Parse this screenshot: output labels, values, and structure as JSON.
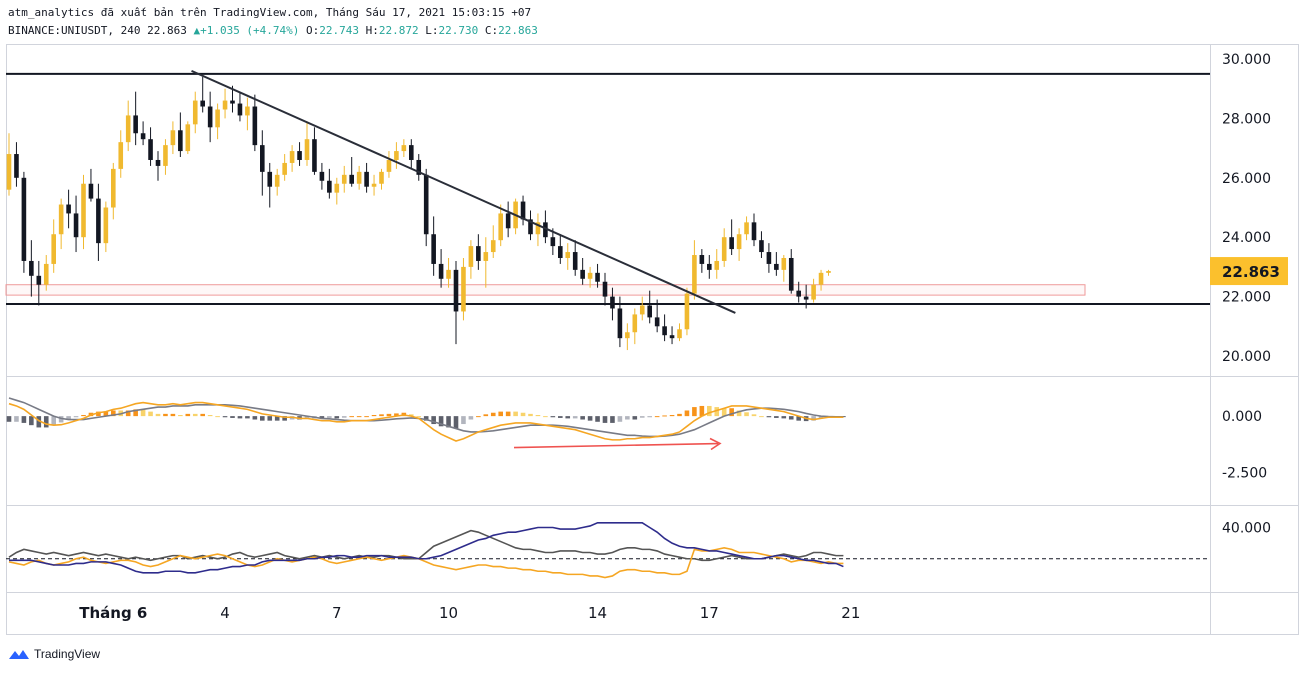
{
  "header": {
    "line1": "atm_analytics đã xuất bản trên TradingView.com, Tháng Sáu 17, 2021 15:03:15 +07",
    "symbol": "BINANCE:UNIUSDT, 240 ",
    "last": "22.863",
    "change_arrow": "▲",
    "change": "+1.035 (+4.74%)",
    "o_label": "O:",
    "o": "22.743",
    "h_label": "H:",
    "h": "22.872",
    "l_label": "L:",
    "l": "22.730",
    "c_label": "C:",
    "c": "22.863"
  },
  "colors": {
    "up": "#f0b92f",
    "down": "#131722",
    "trendline": "#2a2e39",
    "zone_stroke": "#ef9a9a",
    "price_tag": "#fbc02d",
    "macd_fast": "#f5a623",
    "macd_slow": "#787b86",
    "hist_pos": "#f7931a",
    "hist_pos_light": "#f8d36b",
    "hist_neg": "#5d606b",
    "hist_neg_light": "#b2b5be",
    "dmi_plus": "#f5a623",
    "dmi_minus": "#2e2c8c",
    "adx": "#555555",
    "arrow": "#ef5350"
  },
  "footer": {
    "brand": "TradingView"
  },
  "chart_data": {
    "type": "candlestick",
    "price_axis": {
      "ticks": [
        "30.000",
        "28.000",
        "26.000",
        "24.000",
        "22.000",
        "20.000"
      ],
      "range": [
        19.0,
        30.5
      ]
    },
    "time_axis": {
      "labels": [
        "Tháng 6",
        "4",
        "7",
        "10",
        "14",
        "17",
        "21"
      ],
      "label_bars": [
        14,
        29,
        44,
        59,
        79,
        94,
        113
      ]
    },
    "last_price_label": "22.863",
    "horizontal_lines": [
      29.5,
      21.75
    ],
    "support_zone": [
      22.05,
      22.4
    ],
    "trendline": {
      "from": {
        "bar": 24.5,
        "price": 29.6
      },
      "to": {
        "bar": 97.5,
        "price": 21.45
      }
    },
    "candles": [
      [
        25.6,
        27.5,
        25.4,
        26.8
      ],
      [
        26.8,
        27.2,
        25.7,
        26.0
      ],
      [
        26.0,
        26.2,
        22.8,
        23.2
      ],
      [
        23.2,
        23.9,
        22.0,
        22.7
      ],
      [
        22.7,
        23.2,
        21.7,
        22.4
      ],
      [
        22.4,
        23.4,
        22.2,
        23.1
      ],
      [
        23.1,
        24.6,
        22.8,
        24.1
      ],
      [
        24.1,
        25.3,
        23.6,
        25.1
      ],
      [
        25.1,
        25.6,
        24.3,
        24.8
      ],
      [
        24.8,
        25.4,
        23.5,
        24.0
      ],
      [
        24.0,
        26.1,
        23.6,
        25.8
      ],
      [
        25.8,
        26.3,
        25.2,
        25.3
      ],
      [
        25.3,
        25.8,
        23.2,
        23.8
      ],
      [
        23.8,
        25.2,
        23.5,
        25.0
      ],
      [
        25.0,
        26.5,
        24.6,
        26.3
      ],
      [
        26.3,
        27.6,
        26.0,
        27.2
      ],
      [
        27.2,
        28.6,
        26.9,
        28.1
      ],
      [
        28.1,
        28.9,
        27.1,
        27.5
      ],
      [
        27.5,
        27.9,
        27.1,
        27.3
      ],
      [
        27.3,
        27.7,
        26.4,
        26.6
      ],
      [
        26.6,
        26.9,
        25.9,
        26.4
      ],
      [
        26.4,
        27.3,
        26.1,
        27.1
      ],
      [
        27.1,
        27.9,
        26.8,
        27.6
      ],
      [
        27.6,
        28.2,
        26.7,
        26.9
      ],
      [
        26.9,
        27.9,
        26.8,
        27.8
      ],
      [
        27.8,
        28.9,
        27.5,
        28.6
      ],
      [
        28.6,
        29.4,
        28.2,
        28.4
      ],
      [
        28.4,
        28.9,
        27.2,
        27.7
      ],
      [
        27.7,
        28.5,
        27.3,
        28.3
      ],
      [
        28.3,
        29.0,
        28.0,
        28.6
      ],
      [
        28.6,
        29.1,
        28.2,
        28.5
      ],
      [
        28.5,
        28.9,
        27.9,
        28.1
      ],
      [
        28.1,
        28.7,
        27.6,
        28.4
      ],
      [
        28.4,
        28.8,
        26.9,
        27.1
      ],
      [
        27.1,
        27.6,
        25.4,
        26.2
      ],
      [
        26.2,
        26.5,
        25.0,
        25.7
      ],
      [
        25.7,
        26.3,
        25.4,
        26.1
      ],
      [
        26.1,
        26.8,
        25.9,
        26.5
      ],
      [
        26.5,
        27.1,
        26.2,
        26.9
      ],
      [
        26.9,
        27.2,
        26.4,
        26.6
      ],
      [
        26.6,
        27.9,
        26.4,
        27.3
      ],
      [
        27.3,
        27.7,
        26.1,
        26.2
      ],
      [
        26.2,
        26.5,
        25.6,
        25.9
      ],
      [
        25.9,
        26.3,
        25.3,
        25.5
      ],
      [
        25.5,
        26.0,
        25.1,
        25.8
      ],
      [
        25.8,
        26.4,
        25.5,
        26.1
      ],
      [
        26.1,
        26.7,
        25.7,
        25.8
      ],
      [
        25.8,
        26.4,
        25.6,
        26.2
      ],
      [
        26.2,
        26.5,
        25.5,
        25.7
      ],
      [
        25.7,
        26.1,
        25.4,
        25.8
      ],
      [
        25.8,
        26.3,
        25.6,
        26.2
      ],
      [
        26.2,
        26.9,
        26.0,
        26.6
      ],
      [
        26.6,
        27.2,
        26.3,
        26.9
      ],
      [
        26.9,
        27.3,
        26.7,
        27.1
      ],
      [
        27.1,
        27.3,
        26.3,
        26.6
      ],
      [
        26.6,
        26.8,
        25.9,
        26.1
      ],
      [
        26.1,
        26.3,
        23.7,
        24.1
      ],
      [
        24.1,
        24.7,
        22.7,
        23.1
      ],
      [
        23.1,
        23.6,
        22.3,
        22.6
      ],
      [
        22.6,
        23.3,
        22.3,
        22.9
      ],
      [
        22.9,
        23.2,
        20.4,
        21.5
      ],
      [
        21.5,
        23.3,
        21.2,
        23.0
      ],
      [
        23.0,
        23.9,
        22.6,
        23.7
      ],
      [
        23.7,
        24.1,
        22.9,
        23.2
      ],
      [
        23.2,
        24.0,
        22.3,
        23.5
      ],
      [
        23.5,
        24.4,
        23.3,
        23.9
      ],
      [
        23.9,
        25.1,
        23.7,
        24.8
      ],
      [
        24.8,
        25.2,
        24.0,
        24.3
      ],
      [
        24.3,
        25.3,
        24.1,
        25.2
      ],
      [
        25.2,
        25.4,
        24.4,
        24.6
      ],
      [
        24.6,
        24.9,
        23.9,
        24.1
      ],
      [
        24.1,
        24.8,
        23.7,
        24.5
      ],
      [
        24.5,
        24.9,
        23.8,
        24.0
      ],
      [
        24.0,
        24.3,
        23.4,
        23.7
      ],
      [
        23.7,
        24.1,
        23.1,
        23.3
      ],
      [
        23.3,
        23.8,
        22.9,
        23.5
      ],
      [
        23.5,
        23.9,
        22.7,
        22.9
      ],
      [
        22.9,
        23.3,
        22.4,
        22.6
      ],
      [
        22.6,
        23.0,
        22.3,
        22.8
      ],
      [
        22.8,
        23.1,
        22.3,
        22.5
      ],
      [
        22.5,
        22.8,
        21.7,
        22.0
      ],
      [
        22.0,
        22.3,
        21.2,
        21.6
      ],
      [
        21.6,
        22.0,
        20.3,
        20.6
      ],
      [
        20.6,
        21.1,
        20.2,
        20.8
      ],
      [
        20.8,
        21.6,
        20.4,
        21.4
      ],
      [
        21.4,
        22.0,
        21.2,
        21.7
      ],
      [
        21.7,
        22.2,
        21.1,
        21.3
      ],
      [
        21.3,
        21.9,
        20.8,
        21.0
      ],
      [
        21.0,
        21.4,
        20.5,
        20.7
      ],
      [
        20.7,
        21.0,
        20.4,
        20.6
      ],
      [
        20.6,
        21.1,
        20.5,
        20.9
      ],
      [
        20.9,
        22.3,
        20.7,
        22.1
      ],
      [
        22.1,
        23.9,
        21.9,
        23.4
      ],
      [
        23.4,
        23.6,
        22.8,
        23.1
      ],
      [
        23.1,
        23.4,
        22.6,
        22.9
      ],
      [
        22.9,
        23.6,
        22.6,
        23.2
      ],
      [
        23.2,
        24.3,
        23.0,
        24.0
      ],
      [
        24.0,
        24.6,
        23.4,
        23.6
      ],
      [
        23.6,
        24.3,
        23.2,
        24.1
      ],
      [
        24.1,
        24.7,
        23.9,
        24.5
      ],
      [
        24.5,
        24.8,
        23.7,
        23.9
      ],
      [
        23.9,
        24.2,
        23.3,
        23.5
      ],
      [
        23.5,
        23.8,
        22.8,
        23.1
      ],
      [
        23.1,
        23.5,
        22.7,
        22.9
      ],
      [
        22.9,
        23.4,
        22.5,
        23.3
      ],
      [
        23.3,
        23.6,
        22.1,
        22.2
      ],
      [
        22.2,
        22.5,
        21.8,
        22.0
      ],
      [
        22.0,
        22.4,
        21.6,
        21.9
      ],
      [
        21.9,
        22.6,
        21.8,
        22.4
      ],
      [
        22.4,
        22.9,
        22.2,
        22.8
      ],
      [
        22.8,
        22.9,
        22.7,
        22.86
      ]
    ],
    "macd": {
      "axis_ticks": [
        "0.000",
        "-2.500"
      ],
      "range": [
        -3.4,
        1.2
      ],
      "macd": [
        0.55,
        0.45,
        0.3,
        0.05,
        -0.2,
        -0.35,
        -0.4,
        -0.38,
        -0.3,
        -0.2,
        -0.1,
        0.05,
        0.15,
        0.2,
        0.3,
        0.35,
        0.45,
        0.55,
        0.6,
        0.55,
        0.5,
        0.5,
        0.55,
        0.5,
        0.55,
        0.6,
        0.6,
        0.55,
        0.5,
        0.45,
        0.4,
        0.35,
        0.3,
        0.2,
        0.1,
        0.05,
        0.0,
        -0.05,
        -0.05,
        -0.1,
        -0.1,
        -0.15,
        -0.2,
        -0.2,
        -0.25,
        -0.25,
        -0.2,
        -0.2,
        -0.2,
        -0.15,
        -0.1,
        -0.05,
        0.0,
        0.05,
        0.0,
        -0.1,
        -0.35,
        -0.6,
        -0.8,
        -0.95,
        -1.1,
        -1.0,
        -0.85,
        -0.7,
        -0.6,
        -0.5,
        -0.4,
        -0.35,
        -0.3,
        -0.3,
        -0.3,
        -0.35,
        -0.4,
        -0.45,
        -0.5,
        -0.55,
        -0.6,
        -0.7,
        -0.8,
        -0.9,
        -1.0,
        -1.05,
        -1.05,
        -1.0,
        -1.0,
        -0.95,
        -0.95,
        -0.9,
        -0.85,
        -0.8,
        -0.7,
        -0.45,
        -0.2,
        0.0,
        0.15,
        0.25,
        0.35,
        0.45,
        0.45,
        0.45,
        0.4,
        0.35,
        0.3,
        0.25,
        0.2,
        0.1,
        0.0,
        -0.1,
        -0.15,
        -0.1,
        -0.05,
        -0.05,
        -0.05
      ],
      "signal": [
        0.8,
        0.7,
        0.6,
        0.45,
        0.3,
        0.15,
        0.0,
        -0.1,
        -0.15,
        -0.15,
        -0.15,
        -0.1,
        -0.05,
        0.0,
        0.05,
        0.1,
        0.2,
        0.25,
        0.3,
        0.35,
        0.4,
        0.4,
        0.45,
        0.45,
        0.45,
        0.5,
        0.5,
        0.5,
        0.5,
        0.5,
        0.48,
        0.45,
        0.4,
        0.35,
        0.3,
        0.25,
        0.2,
        0.15,
        0.1,
        0.05,
        0.0,
        -0.05,
        -0.1,
        -0.12,
        -0.15,
        -0.18,
        -0.2,
        -0.2,
        -0.2,
        -0.2,
        -0.18,
        -0.15,
        -0.12,
        -0.1,
        -0.08,
        -0.1,
        -0.15,
        -0.25,
        -0.35,
        -0.45,
        -0.55,
        -0.65,
        -0.7,
        -0.7,
        -0.68,
        -0.65,
        -0.6,
        -0.55,
        -0.5,
        -0.45,
        -0.4,
        -0.4,
        -0.4,
        -0.4,
        -0.42,
        -0.45,
        -0.5,
        -0.55,
        -0.6,
        -0.65,
        -0.7,
        -0.75,
        -0.8,
        -0.85,
        -0.85,
        -0.88,
        -0.9,
        -0.9,
        -0.88,
        -0.85,
        -0.8,
        -0.7,
        -0.6,
        -0.45,
        -0.3,
        -0.15,
        0.0,
        0.1,
        0.2,
        0.28,
        0.32,
        0.35,
        0.35,
        0.33,
        0.3,
        0.25,
        0.2,
        0.12,
        0.05,
        0.0,
        -0.02,
        -0.03,
        -0.03
      ],
      "annotation": "arrow"
    },
    "dmi": {
      "axis_ticks": [
        "40.000"
      ],
      "range": [
        0,
        48
      ],
      "baseline": 20,
      "di_plus": [
        18,
        17,
        16,
        18,
        19,
        17,
        16,
        17,
        18,
        20,
        21,
        19,
        18,
        17,
        18,
        19,
        19,
        18,
        16,
        15,
        16,
        18,
        20,
        22,
        21,
        20,
        21,
        22,
        23,
        22,
        20,
        18,
        16,
        15,
        16,
        18,
        20,
        19,
        18,
        19,
        20,
        21,
        20,
        18,
        17,
        18,
        19,
        20,
        21,
        20,
        19,
        20,
        21,
        22,
        21,
        20,
        18,
        16,
        15,
        14,
        13,
        14,
        15,
        16,
        16,
        15,
        15,
        14,
        14,
        13,
        13,
        12,
        12,
        11,
        11,
        10,
        10,
        10,
        9,
        9,
        8,
        9,
        12,
        13,
        13,
        12,
        12,
        11,
        11,
        10,
        10,
        12,
        26,
        25,
        25,
        26,
        27,
        26,
        24,
        24,
        24,
        23,
        22,
        21,
        20,
        18,
        19,
        19,
        18,
        17,
        18,
        17,
        17
      ],
      "di_minus": [
        19,
        19,
        19,
        19,
        18,
        17,
        16,
        16,
        16,
        17,
        17,
        18,
        18,
        18,
        17,
        16,
        14,
        12,
        11,
        11,
        11,
        12,
        12,
        12,
        11,
        11,
        12,
        13,
        13,
        14,
        15,
        15,
        16,
        16,
        18,
        19,
        19,
        19,
        19,
        19,
        20,
        20,
        21,
        21,
        22,
        22,
        21,
        21,
        22,
        22,
        22,
        21,
        21,
        21,
        21,
        20,
        20,
        21,
        22,
        24,
        26,
        28,
        30,
        32,
        33,
        35,
        36,
        37,
        37,
        38,
        39,
        40,
        40,
        40,
        39,
        39,
        39,
        40,
        41,
        43,
        43,
        43,
        43,
        43,
        43,
        43,
        40,
        37,
        33,
        30,
        28,
        27,
        27,
        26,
        25,
        25,
        24,
        23,
        22,
        21,
        20,
        20,
        21,
        22,
        22,
        21,
        20,
        19,
        19,
        18,
        17,
        17,
        15
      ],
      "adx": [
        21,
        24,
        26,
        25,
        24,
        23,
        24,
        23,
        22,
        23,
        24,
        23,
        22,
        23,
        22,
        21,
        20,
        21,
        20,
        19,
        20,
        21,
        22,
        22,
        20,
        21,
        22,
        21,
        20,
        21,
        23,
        24,
        22,
        21,
        22,
        23,
        24,
        22,
        21,
        20,
        21,
        22,
        21,
        22,
        21,
        20,
        21,
        22,
        21,
        21,
        22,
        22,
        21,
        20,
        20,
        20,
        24,
        28,
        30,
        32,
        34,
        36,
        38,
        37,
        35,
        33,
        31,
        29,
        27,
        26,
        26,
        25,
        24,
        24,
        25,
        25,
        25,
        24,
        24,
        23,
        23,
        24,
        26,
        27,
        27,
        26,
        26,
        25,
        23,
        22,
        21,
        20,
        20,
        19,
        19,
        20,
        21,
        22,
        21,
        20,
        20,
        20,
        21,
        22,
        23,
        22,
        21,
        22,
        24,
        24,
        23,
        22,
        22
      ]
    }
  }
}
